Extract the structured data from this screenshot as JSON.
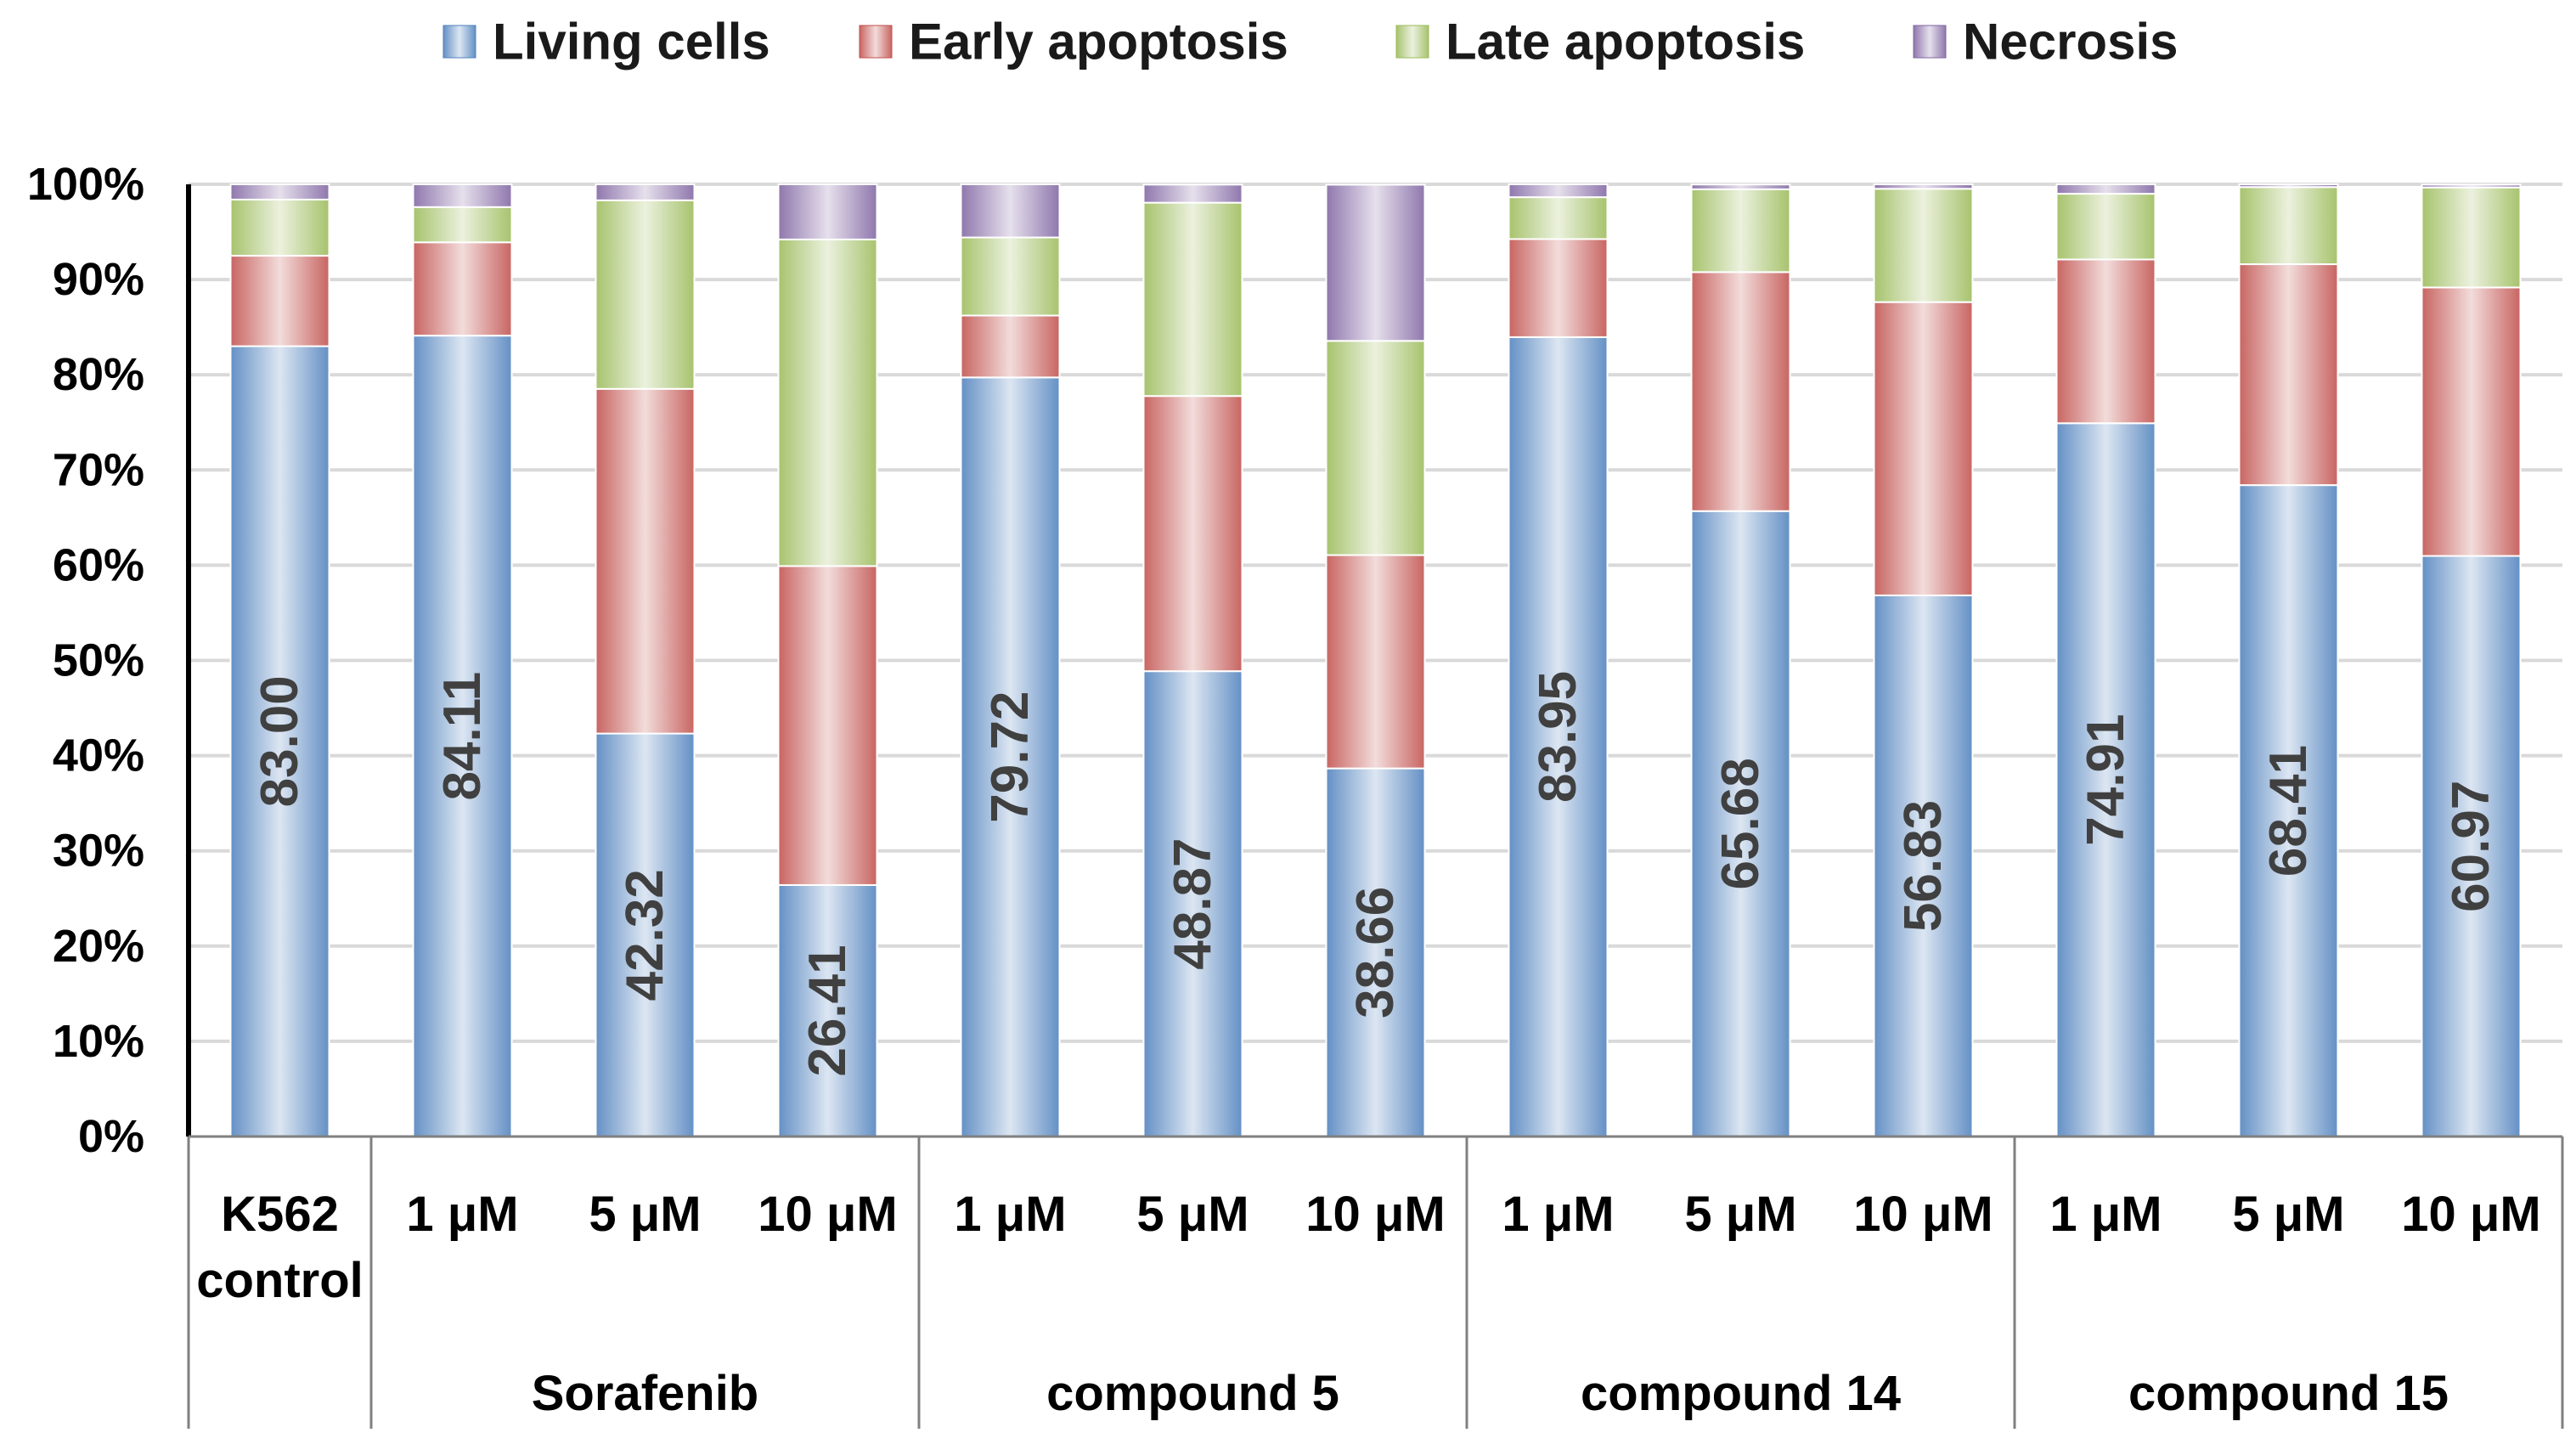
{
  "chart_data": {
    "type": "bar",
    "stacked": true,
    "orientation": "vertical",
    "title": "",
    "xlabel": "",
    "ylabel": "",
    "ylim": [
      0,
      100
    ],
    "yticks": [
      0,
      10,
      20,
      30,
      40,
      50,
      60,
      70,
      80,
      90,
      100
    ],
    "ytick_labels": [
      "0%",
      "10%",
      "20%",
      "30%",
      "40%",
      "50%",
      "60%",
      "70%",
      "80%",
      "90%",
      "100%"
    ],
    "grid": true,
    "legend_position": "top",
    "categories": [
      "K562 control",
      "1 μM",
      "5 μM",
      "10 μM",
      "1 μM",
      "5 μM",
      "10 μM",
      "1 μM",
      "5 μM",
      "10 μM",
      "1 μM",
      "5 μM",
      "10 μM"
    ],
    "groups": [
      {
        "label": "",
        "size": 1
      },
      {
        "label": "Sorafenib",
        "size": 3
      },
      {
        "label": "compound 5",
        "size": 3
      },
      {
        "label": "compound 14",
        "size": 3
      },
      {
        "label": "compound 15",
        "size": 3
      }
    ],
    "series": [
      {
        "name": "Living cells",
        "color": "#4f81bd",
        "values": [
          83.0,
          84.11,
          42.32,
          26.41,
          79.72,
          48.87,
          38.66,
          83.95,
          65.68,
          56.83,
          74.91,
          68.41,
          60.97
        ],
        "data_labels": [
          "83.00",
          "84.11",
          "42.32",
          "26.41",
          "79.72",
          "48.87",
          "38.66",
          "83.95",
          "65.68",
          "56.83",
          "74.91",
          "68.41",
          "60.97"
        ]
      },
      {
        "name": "Early apoptosis",
        "color": "#c0504d",
        "values": [
          9.5,
          9.8,
          36.2,
          33.5,
          6.5,
          28.9,
          22.4,
          10.3,
          25.1,
          30.8,
          17.2,
          23.2,
          28.2
        ]
      },
      {
        "name": "Late apoptosis",
        "color": "#9bbb59",
        "values": [
          5.9,
          3.7,
          19.8,
          34.3,
          8.2,
          20.3,
          22.5,
          4.4,
          8.7,
          11.9,
          6.9,
          8.1,
          10.5
        ]
      },
      {
        "name": "Necrosis",
        "color": "#8064a2",
        "values": [
          1.6,
          2.4,
          1.7,
          5.8,
          5.6,
          1.9,
          16.4,
          1.4,
          0.5,
          0.5,
          1.0,
          0.3,
          0.3
        ]
      }
    ]
  }
}
